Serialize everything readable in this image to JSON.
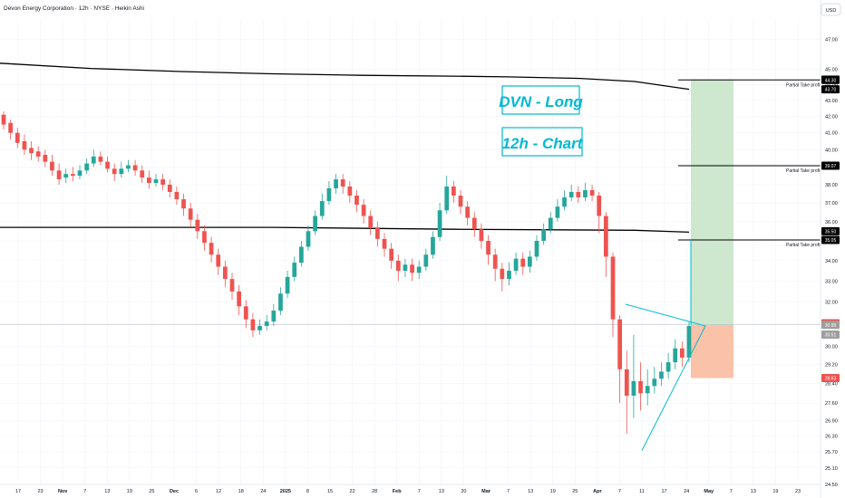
{
  "header": {
    "title": "Devon Energy Corporation · 12h · NYSE · Heikin Ashi",
    "currency": "USD"
  },
  "annotations": {
    "label1": "DVN - Long",
    "label2": "12h - Chart",
    "take_profit_label": "Partial Take profit"
  },
  "colors": {
    "up": "#26a69a",
    "down": "#ef5350",
    "trendline": "#00bcd4",
    "ma": "#000000",
    "target_fill": "#c8e6c9",
    "stop_fill": "#f8bba0",
    "label_text": "#00b8d4"
  },
  "price_badges": [
    {
      "value": "44.34",
      "color": "#4caf50"
    },
    {
      "value": "44.30",
      "color": "#000000"
    },
    {
      "value": "43.70",
      "color": "#000000"
    },
    {
      "value": "39.07",
      "color": "#000000"
    },
    {
      "value": "35.50",
      "color": "#000000"
    },
    {
      "value": "35.05",
      "color": "#000000"
    },
    {
      "value": "31.02",
      "color": "#ef5350"
    },
    {
      "value": "30.95",
      "color": "#9e9e9e"
    },
    {
      "value": "30.51",
      "color": "#9e9e9e"
    },
    {
      "value": "28.63",
      "color": "#ef5350"
    }
  ],
  "chart_data": {
    "type": "candlestick",
    "style": "Heikin Ashi",
    "interval": "12h",
    "y_axis": {
      "scale": "log",
      "ticks": [
        "47.00",
        "45.00",
        "44.00",
        "43.00",
        "42.00",
        "41.00",
        "40.00",
        "39.00",
        "38.00",
        "37.00",
        "36.00",
        "35.00",
        "34.00",
        "33.00",
        "32.00",
        "31.00",
        "30.00",
        "29.20",
        "28.40",
        "27.60",
        "26.90",
        "26.30",
        "25.70",
        "25.10",
        "24.50"
      ],
      "range": [
        24.5,
        48.5
      ]
    },
    "x_axis": {
      "ticks": [
        "17",
        "23",
        "Nov",
        "7",
        "13",
        "19",
        "25",
        "Dec",
        "6",
        "12",
        "18",
        "24",
        "2025",
        "8",
        "15",
        "22",
        "28",
        "Feb",
        "7",
        "13",
        "20",
        "Mar",
        "7",
        "13",
        "19",
        "25",
        "Apr",
        "7",
        "11",
        "17",
        "24",
        "May",
        "7",
        "13",
        "19",
        "23"
      ]
    },
    "moving_averages": [
      {
        "points": [
          [
            0,
            45.4
          ],
          [
            100,
            45.05
          ],
          [
            200,
            44.85
          ],
          [
            300,
            44.7
          ],
          [
            400,
            44.6
          ],
          [
            500,
            44.55
          ],
          [
            560,
            44.5
          ],
          [
            640,
            44.4
          ],
          [
            700,
            44.2
          ],
          [
            760,
            43.7
          ]
        ]
      },
      {
        "points": [
          [
            0,
            35.7
          ],
          [
            300,
            35.7
          ],
          [
            500,
            35.6
          ],
          [
            700,
            35.55
          ],
          [
            760,
            35.45
          ]
        ]
      }
    ],
    "trendlines": [
      {
        "from": [
          690,
          31.9
        ],
        "to": [
          778,
          30.9
        ]
      },
      {
        "from": [
          708,
          25.75
        ],
        "to": [
          778,
          30.9
        ]
      }
    ],
    "position": {
      "entry": 30.95,
      "stop": 28.63,
      "target": 44.34
    },
    "levels": [
      {
        "price": 44.3,
        "label": "Partial Take profit"
      },
      {
        "price": 39.07,
        "label": "Partial Take profit"
      },
      {
        "price": 35.05,
        "label": "Partial Take profit"
      }
    ],
    "candles": [
      {
        "o": 42.1,
        "c": 41.5,
        "h": 42.3,
        "l": 41.2
      },
      {
        "o": 41.6,
        "c": 41.0,
        "h": 41.8,
        "l": 40.6
      },
      {
        "o": 41.0,
        "c": 40.4,
        "h": 41.3,
        "l": 40.1
      },
      {
        "o": 40.5,
        "c": 40.0,
        "h": 40.9,
        "l": 39.7
      },
      {
        "o": 40.1,
        "c": 39.8,
        "h": 40.5,
        "l": 39.4
      },
      {
        "o": 39.9,
        "c": 39.6,
        "h": 40.2,
        "l": 39.3
      },
      {
        "o": 39.7,
        "c": 39.3,
        "h": 40.0,
        "l": 39.0
      },
      {
        "o": 39.3,
        "c": 38.8,
        "h": 39.7,
        "l": 38.5
      },
      {
        "o": 38.8,
        "c": 38.3,
        "h": 39.2,
        "l": 38.0
      },
      {
        "o": 38.4,
        "c": 38.6,
        "h": 38.9,
        "l": 38.1
      },
      {
        "o": 38.6,
        "c": 38.5,
        "h": 39.0,
        "l": 38.2
      },
      {
        "o": 38.5,
        "c": 38.8,
        "h": 39.1,
        "l": 38.3
      },
      {
        "o": 38.8,
        "c": 39.2,
        "h": 39.5,
        "l": 38.6
      },
      {
        "o": 39.2,
        "c": 39.6,
        "h": 40.0,
        "l": 39.0
      },
      {
        "o": 39.6,
        "c": 39.3,
        "h": 39.9,
        "l": 39.1
      },
      {
        "o": 39.3,
        "c": 38.9,
        "h": 39.6,
        "l": 38.7
      },
      {
        "o": 38.9,
        "c": 38.6,
        "h": 39.2,
        "l": 38.2
      },
      {
        "o": 38.6,
        "c": 38.9,
        "h": 39.3,
        "l": 38.4
      },
      {
        "o": 38.9,
        "c": 39.1,
        "h": 39.4,
        "l": 38.7
      },
      {
        "o": 39.1,
        "c": 38.8,
        "h": 39.4,
        "l": 38.5
      },
      {
        "o": 38.8,
        "c": 38.4,
        "h": 39.1,
        "l": 38.1
      },
      {
        "o": 38.4,
        "c": 38.1,
        "h": 38.8,
        "l": 37.8
      },
      {
        "o": 38.1,
        "c": 38.3,
        "h": 38.6,
        "l": 37.9
      },
      {
        "o": 38.3,
        "c": 38.0,
        "h": 38.6,
        "l": 37.7
      },
      {
        "o": 38.0,
        "c": 37.6,
        "h": 38.3,
        "l": 37.3
      },
      {
        "o": 37.6,
        "c": 37.2,
        "h": 37.9,
        "l": 36.9
      },
      {
        "o": 37.2,
        "c": 36.7,
        "h": 37.5,
        "l": 36.3
      },
      {
        "o": 36.7,
        "c": 36.1,
        "h": 37.0,
        "l": 35.7
      },
      {
        "o": 36.1,
        "c": 35.5,
        "h": 36.4,
        "l": 35.1
      },
      {
        "o": 35.5,
        "c": 34.9,
        "h": 35.8,
        "l": 34.5
      },
      {
        "o": 34.9,
        "c": 34.3,
        "h": 35.2,
        "l": 33.9
      },
      {
        "o": 34.3,
        "c": 33.7,
        "h": 34.6,
        "l": 33.3
      },
      {
        "o": 33.7,
        "c": 33.1,
        "h": 34.0,
        "l": 32.7
      },
      {
        "o": 33.1,
        "c": 32.5,
        "h": 33.4,
        "l": 32.1
      },
      {
        "o": 32.5,
        "c": 31.8,
        "h": 32.8,
        "l": 31.4
      },
      {
        "o": 31.8,
        "c": 31.2,
        "h": 32.1,
        "l": 30.8
      },
      {
        "o": 31.2,
        "c": 30.7,
        "h": 31.5,
        "l": 30.4
      },
      {
        "o": 30.7,
        "c": 30.9,
        "h": 31.2,
        "l": 30.5
      },
      {
        "o": 30.9,
        "c": 31.1,
        "h": 31.4,
        "l": 30.7
      },
      {
        "o": 31.1,
        "c": 31.6,
        "h": 31.9,
        "l": 30.9
      },
      {
        "o": 31.6,
        "c": 32.4,
        "h": 32.7,
        "l": 31.4
      },
      {
        "o": 32.4,
        "c": 33.2,
        "h": 33.5,
        "l": 32.2
      },
      {
        "o": 33.2,
        "c": 33.9,
        "h": 34.2,
        "l": 33.0
      },
      {
        "o": 33.9,
        "c": 34.7,
        "h": 35.0,
        "l": 33.7
      },
      {
        "o": 34.7,
        "c": 35.5,
        "h": 35.8,
        "l": 34.5
      },
      {
        "o": 35.5,
        "c": 36.3,
        "h": 36.6,
        "l": 35.3
      },
      {
        "o": 36.3,
        "c": 37.1,
        "h": 37.5,
        "l": 36.1
      },
      {
        "o": 37.1,
        "c": 37.8,
        "h": 38.2,
        "l": 36.9
      },
      {
        "o": 37.8,
        "c": 38.3,
        "h": 38.6,
        "l": 37.5
      },
      {
        "o": 38.3,
        "c": 37.9,
        "h": 38.6,
        "l": 37.5
      },
      {
        "o": 37.9,
        "c": 37.4,
        "h": 38.2,
        "l": 37.0
      },
      {
        "o": 37.4,
        "c": 36.9,
        "h": 37.7,
        "l": 36.5
      },
      {
        "o": 36.9,
        "c": 36.3,
        "h": 37.2,
        "l": 35.9
      },
      {
        "o": 36.3,
        "c": 35.7,
        "h": 36.6,
        "l": 35.3
      },
      {
        "o": 35.7,
        "c": 35.1,
        "h": 36.0,
        "l": 34.7
      },
      {
        "o": 35.1,
        "c": 34.6,
        "h": 35.4,
        "l": 34.2
      },
      {
        "o": 34.6,
        "c": 34.0,
        "h": 34.9,
        "l": 33.6
      },
      {
        "o": 34.0,
        "c": 33.5,
        "h": 34.3,
        "l": 33.0
      },
      {
        "o": 33.5,
        "c": 33.8,
        "h": 34.1,
        "l": 33.2
      },
      {
        "o": 33.8,
        "c": 33.4,
        "h": 34.1,
        "l": 33.0
      },
      {
        "o": 33.4,
        "c": 33.7,
        "h": 34.0,
        "l": 33.1
      },
      {
        "o": 33.7,
        "c": 34.3,
        "h": 34.6,
        "l": 33.5
      },
      {
        "o": 34.3,
        "c": 35.2,
        "h": 35.5,
        "l": 34.1
      },
      {
        "o": 35.2,
        "c": 36.6,
        "h": 37.0,
        "l": 35.0
      },
      {
        "o": 36.6,
        "c": 37.9,
        "h": 38.5,
        "l": 36.4
      },
      {
        "o": 37.9,
        "c": 37.4,
        "h": 38.2,
        "l": 37.0
      },
      {
        "o": 37.4,
        "c": 36.8,
        "h": 37.7,
        "l": 36.4
      },
      {
        "o": 36.8,
        "c": 36.2,
        "h": 37.1,
        "l": 35.8
      },
      {
        "o": 36.2,
        "c": 35.6,
        "h": 36.5,
        "l": 35.2
      },
      {
        "o": 35.6,
        "c": 35.0,
        "h": 35.9,
        "l": 34.6
      },
      {
        "o": 35.0,
        "c": 34.3,
        "h": 35.3,
        "l": 33.8
      },
      {
        "o": 34.3,
        "c": 33.6,
        "h": 34.6,
        "l": 33.0
      },
      {
        "o": 33.6,
        "c": 33.1,
        "h": 33.9,
        "l": 32.5
      },
      {
        "o": 33.1,
        "c": 33.5,
        "h": 33.9,
        "l": 32.8
      },
      {
        "o": 33.5,
        "c": 34.1,
        "h": 34.4,
        "l": 33.3
      },
      {
        "o": 34.1,
        "c": 33.7,
        "h": 34.4,
        "l": 33.3
      },
      {
        "o": 33.7,
        "c": 34.2,
        "h": 34.5,
        "l": 33.4
      },
      {
        "o": 34.2,
        "c": 35.0,
        "h": 35.3,
        "l": 34.0
      },
      {
        "o": 35.0,
        "c": 35.6,
        "h": 35.9,
        "l": 34.8
      },
      {
        "o": 35.6,
        "c": 36.2,
        "h": 36.5,
        "l": 35.4
      },
      {
        "o": 36.2,
        "c": 36.8,
        "h": 37.2,
        "l": 36.0
      },
      {
        "o": 36.8,
        "c": 37.3,
        "h": 37.7,
        "l": 36.6
      },
      {
        "o": 37.3,
        "c": 37.6,
        "h": 38.0,
        "l": 37.1
      },
      {
        "o": 37.6,
        "c": 37.3,
        "h": 37.9,
        "l": 37.0
      },
      {
        "o": 37.3,
        "c": 37.7,
        "h": 38.1,
        "l": 37.1
      },
      {
        "o": 37.7,
        "c": 37.4,
        "h": 38.0,
        "l": 37.1
      },
      {
        "o": 37.4,
        "c": 36.3,
        "h": 37.6,
        "l": 35.4
      },
      {
        "o": 36.3,
        "c": 34.2,
        "h": 36.5,
        "l": 33.2
      },
      {
        "o": 34.2,
        "c": 31.2,
        "h": 34.4,
        "l": 30.4
      },
      {
        "o": 31.2,
        "c": 29.0,
        "h": 31.4,
        "l": 27.6
      },
      {
        "o": 29.0,
        "c": 27.9,
        "h": 29.8,
        "l": 26.4
      },
      {
        "o": 27.9,
        "c": 28.5,
        "h": 30.5,
        "l": 27.0
      },
      {
        "o": 28.5,
        "c": 28.0,
        "h": 29.3,
        "l": 27.3
      },
      {
        "o": 28.0,
        "c": 28.3,
        "h": 29.0,
        "l": 27.5
      },
      {
        "o": 28.3,
        "c": 28.6,
        "h": 29.1,
        "l": 28.0
      },
      {
        "o": 28.6,
        "c": 28.9,
        "h": 29.3,
        "l": 28.3
      },
      {
        "o": 28.9,
        "c": 29.3,
        "h": 29.7,
        "l": 28.6
      },
      {
        "o": 29.3,
        "c": 29.9,
        "h": 30.3,
        "l": 29.0
      },
      {
        "o": 29.9,
        "c": 29.5,
        "h": 30.2,
        "l": 29.1
      },
      {
        "o": 29.5,
        "c": 30.9,
        "h": 31.1,
        "l": 29.3
      }
    ]
  }
}
